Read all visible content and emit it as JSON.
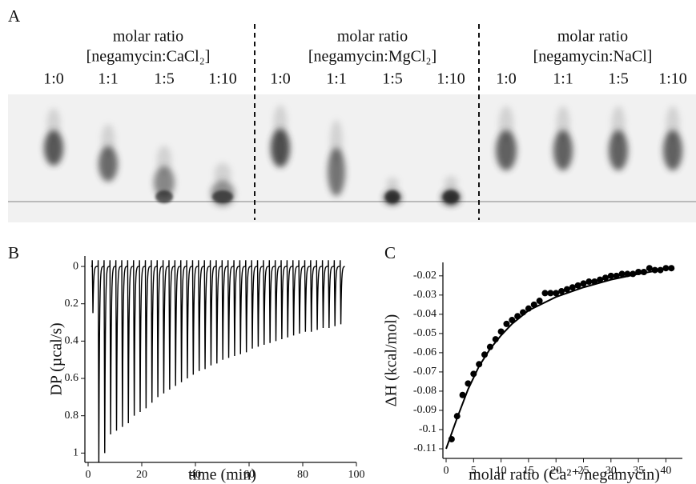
{
  "panel_a": {
    "label": "A",
    "groups": [
      {
        "title": "molar ratio",
        "subtitle": "[negamycin:CaCl₂]",
        "lanes": [
          "1:0",
          "1:1",
          "1:5",
          "1:10"
        ]
      },
      {
        "title": "molar ratio",
        "subtitle": "[negamycin:MgCl₂]",
        "lanes": [
          "1:0",
          "1:1",
          "1:5",
          "1:10"
        ]
      },
      {
        "title": "molar ratio",
        "subtitle": "[negamycin:NaCl]",
        "lanes": [
          "1:0",
          "1:1",
          "1:5",
          "1:10"
        ]
      }
    ]
  },
  "chart_data": [
    {
      "type": "itc-raw",
      "label": "B",
      "ylabel": "DP (µcal/s)",
      "xlabel": "time (min)",
      "color": "#000000",
      "xlim": [
        0,
        100
      ],
      "xticks": [
        0,
        20,
        40,
        60,
        80,
        100
      ],
      "ylim": [
        1.05,
        -0.056
      ],
      "yticks": [
        0,
        0.2,
        0.4,
        0.6,
        0.8,
        1
      ],
      "x": [
        1.5,
        3.7,
        5.9,
        8.1,
        10.3,
        12.5,
        14.7,
        16.9,
        19.1,
        21.3,
        23.5,
        25.7,
        27.9,
        30.1,
        32.3,
        34.5,
        36.7,
        38.9,
        41.1,
        43.3,
        45.5,
        47.7,
        49.9,
        52.1,
        54.3,
        56.5,
        58.7,
        60.9,
        63.1,
        65.3,
        67.5,
        69.7,
        71.9,
        74.1,
        76.3,
        78.5,
        80.7,
        82.9,
        85.1,
        87.3,
        89.5,
        91.7,
        93.9
      ],
      "values": [
        0.25,
        1.05,
        1.0,
        0.9,
        0.88,
        0.86,
        0.84,
        0.8,
        0.78,
        0.76,
        0.73,
        0.7,
        0.68,
        0.66,
        0.64,
        0.62,
        0.6,
        0.58,
        0.56,
        0.55,
        0.53,
        0.52,
        0.5,
        0.49,
        0.48,
        0.47,
        0.46,
        0.44,
        0.43,
        0.42,
        0.41,
        0.4,
        0.39,
        0.38,
        0.37,
        0.36,
        0.35,
        0.35,
        0.34,
        0.33,
        0.33,
        0.32,
        0.31
      ]
    },
    {
      "type": "scatter-fit",
      "label": "C",
      "ylabel": "ΔH (kcal/mol)",
      "xlabel": "molar ratio (Ca²⁺/negamycin)",
      "color": "#000000",
      "xlim": [
        0,
        43
      ],
      "xticks": [
        0,
        5,
        10,
        15,
        20,
        25,
        30,
        35,
        40
      ],
      "ylim": [
        -0.115,
        -0.013
      ],
      "yticks": [
        -0.11,
        -0.1,
        -0.09,
        -0.08,
        -0.07,
        -0.06,
        -0.05,
        -0.04,
        -0.03,
        -0.02
      ],
      "points": {
        "x": [
          1,
          2,
          3,
          4,
          5,
          6,
          7,
          8,
          9,
          10,
          11,
          12,
          13,
          14,
          15,
          16,
          17,
          18,
          19,
          20,
          21,
          22,
          23,
          24,
          25,
          26,
          27,
          28,
          29,
          30,
          31,
          32,
          33,
          34,
          35,
          36,
          37,
          38,
          39,
          40,
          41
        ],
        "values": [
          -0.105,
          -0.093,
          -0.082,
          -0.076,
          -0.071,
          -0.066,
          -0.061,
          -0.057,
          -0.053,
          -0.049,
          -0.045,
          -0.043,
          -0.041,
          -0.039,
          -0.037,
          -0.035,
          -0.033,
          -0.029,
          -0.029,
          -0.029,
          -0.028,
          -0.027,
          -0.026,
          -0.025,
          -0.024,
          -0.023,
          -0.023,
          -0.022,
          -0.021,
          -0.02,
          -0.02,
          -0.019,
          -0.019,
          -0.019,
          -0.018,
          -0.018,
          -0.016,
          -0.017,
          -0.017,
          -0.016,
          -0.016
        ]
      },
      "fit": {
        "x": [
          0,
          2,
          4,
          6,
          8,
          10,
          12,
          15,
          20,
          25,
          30,
          35,
          41
        ],
        "values": [
          -0.11,
          -0.094,
          -0.079,
          -0.067,
          -0.058,
          -0.051,
          -0.045,
          -0.038,
          -0.031,
          -0.026,
          -0.022,
          -0.019,
          -0.016
        ]
      }
    }
  ]
}
